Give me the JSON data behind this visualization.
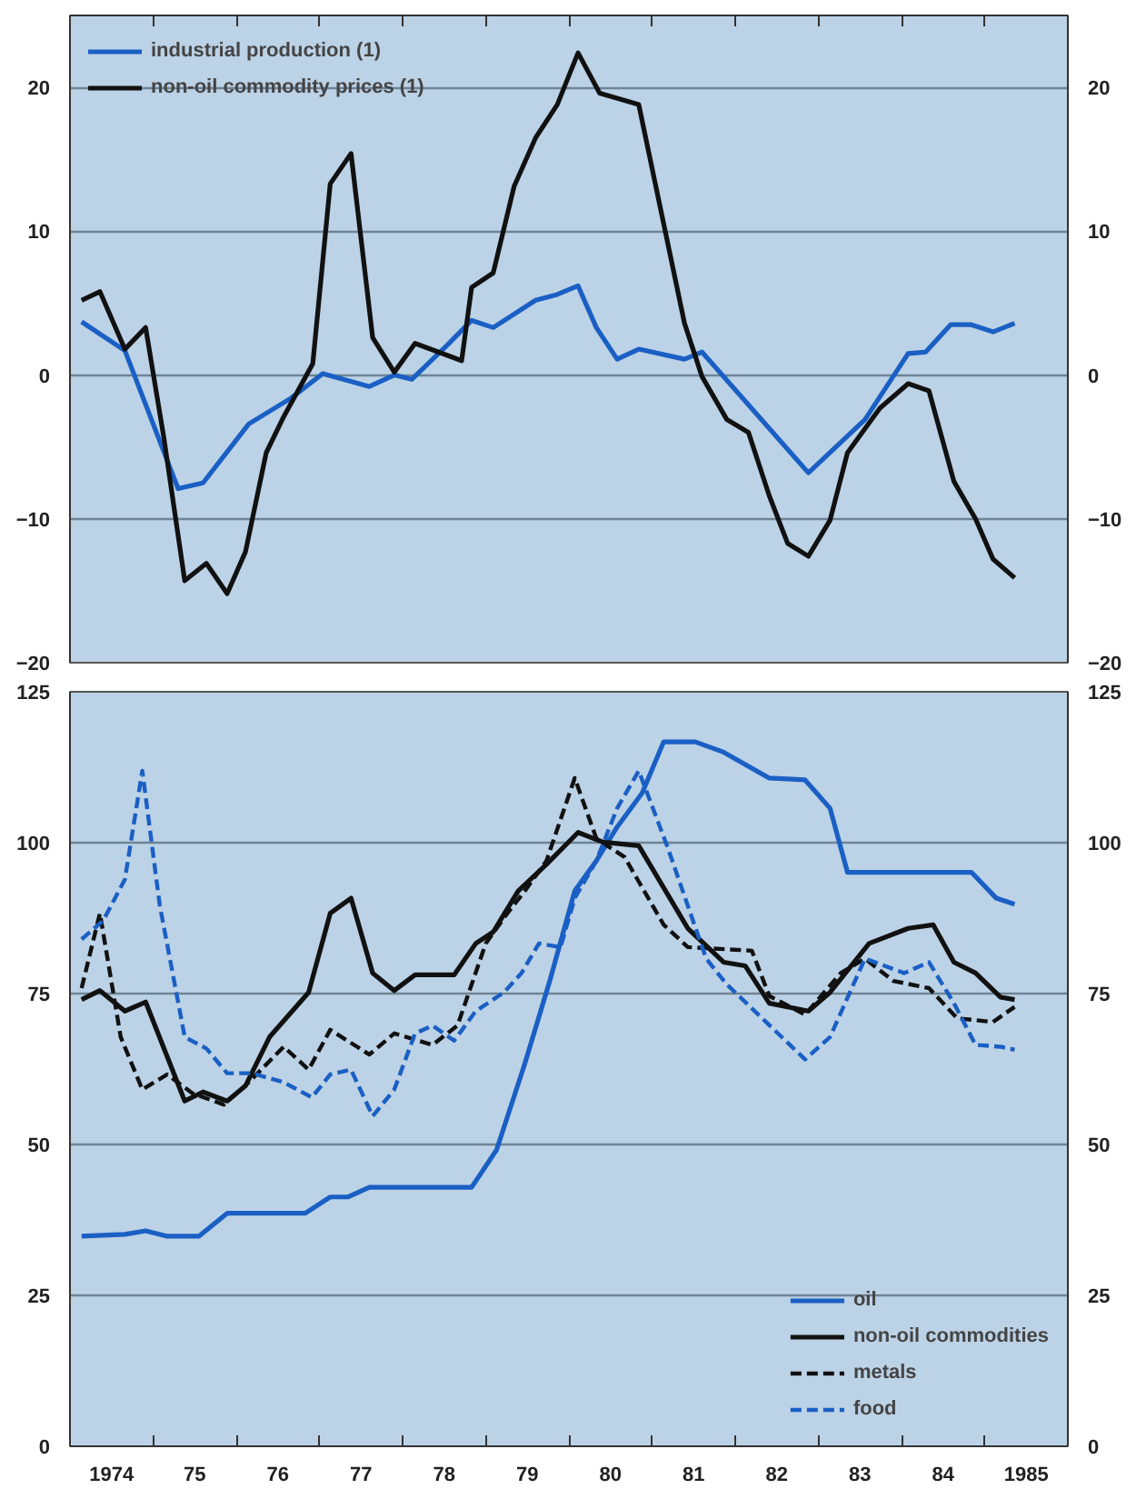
{
  "chart_data": [
    {
      "type": "line",
      "xlim": [
        1973.5,
        1985.5
      ],
      "ylim": [
        -20,
        25
      ],
      "yticks": [
        -20,
        -10,
        0,
        10,
        20
      ],
      "y2lim": [
        -20,
        25
      ],
      "y2ticks": [
        -20,
        -10,
        0,
        10,
        20
      ],
      "xticks": [
        {
          "value": 1974.5,
          "label": null
        },
        {
          "value": 1975.5,
          "label": null
        },
        {
          "value": 1976.5,
          "label": null
        },
        {
          "value": 1977.5,
          "label": null
        },
        {
          "value": 1978.5,
          "label": null
        },
        {
          "value": 1979.5,
          "label": null
        },
        {
          "value": 1980.5,
          "label": null
        },
        {
          "value": 1981.5,
          "label": null
        },
        {
          "value": 1982.5,
          "label": null
        },
        {
          "value": 1983.5,
          "label": null
        },
        {
          "value": 1984.5,
          "label": null
        }
      ],
      "tick_labels": "y",
      "grid": "y",
      "legend": "top left",
      "line_style": "solid",
      "series": [
        {
          "name": "industrial production (1)",
          "color": "#1a5fc4",
          "x": [
            1973.64,
            1974.16,
            1974.8,
            1975.1,
            1975.65,
            1976.16,
            1976.54,
            1977.1,
            1977.4,
            1977.61,
            1978.04,
            1978.33,
            1978.59,
            1979.1,
            1979.36,
            1979.61,
            1979.83,
            1980.08,
            1980.34,
            1980.89,
            1981.1,
            1982.38,
            1983.06,
            1983.58,
            1983.79,
            1984.09,
            1984.34,
            1984.6,
            1984.86
          ],
          "values": [
            3.7,
            1.7,
            -7.9,
            -7.5,
            -3.4,
            -1.6,
            0.1,
            -0.8,
            0,
            -0.3,
            2.1,
            3.8,
            3.3,
            5.2,
            5.6,
            6.2,
            3.3,
            1.1,
            1.8,
            1.1,
            1.6,
            -6.8,
            -3.1,
            1.5,
            1.6,
            3.5,
            3.5,
            3.0,
            3.6
          ]
        },
        {
          "name": "non-oil commodity prices (1)",
          "color": "#111111",
          "x": [
            1973.64,
            1973.86,
            1974.16,
            1974.41,
            1974.63,
            1974.88,
            1975.14,
            1975.39,
            1975.61,
            1975.86,
            1976.07,
            1976.42,
            1976.63,
            1976.88,
            1977.14,
            1977.4,
            1977.65,
            1978.21,
            1978.33,
            1978.59,
            1978.84,
            1979.1,
            1979.36,
            1979.61,
            1979.87,
            1980.34,
            1980.89,
            1981.1,
            1981.4,
            1981.66,
            1981.91,
            1982.13,
            1982.38,
            1982.64,
            1982.85,
            1983.24,
            1983.58,
            1983.83,
            1984.13,
            1984.39,
            1984.6,
            1984.86
          ],
          "values": [
            5.2,
            5.8,
            1.8,
            3.3,
            -4.4,
            -14.3,
            -13.1,
            -15.2,
            -12.3,
            -5.4,
            -2.9,
            0.8,
            13.3,
            15.4,
            2.6,
            0.2,
            2.2,
            1.0,
            6.1,
            7.1,
            13.1,
            16.5,
            18.8,
            22.4,
            19.6,
            18.8,
            3.6,
            -0.1,
            -3.1,
            -4.0,
            -8.4,
            -11.7,
            -12.6,
            -10.1,
            -5.4,
            -2.3,
            -0.6,
            -1.1,
            -7.4,
            -10.0,
            -12.8,
            -14.1
          ]
        }
      ]
    },
    {
      "type": "line",
      "xlim": [
        1973.5,
        1985.5
      ],
      "ylim": [
        0,
        125
      ],
      "yticks": [
        0,
        25,
        50,
        75,
        100,
        125
      ],
      "y2lim": [
        0,
        125
      ],
      "y2ticks": [
        0,
        25,
        50,
        75,
        100,
        125
      ],
      "xticks": [
        {
          "value": 1974,
          "label": "1974"
        },
        {
          "value": 1975,
          "label": "75"
        },
        {
          "value": 1976,
          "label": "76"
        },
        {
          "value": 1977,
          "label": "77"
        },
        {
          "value": 1978,
          "label": "78"
        },
        {
          "value": 1979,
          "label": "79"
        },
        {
          "value": 1980,
          "label": "80"
        },
        {
          "value": 1981,
          "label": "81"
        },
        {
          "value": 1982,
          "label": "82"
        },
        {
          "value": 1983,
          "label": "83"
        },
        {
          "value": 1984,
          "label": "84"
        },
        {
          "value": 1985,
          "label": "1985"
        },
        {
          "value": 1974.5,
          "label": null
        },
        {
          "value": 1975.5,
          "label": null
        },
        {
          "value": 1976.5,
          "label": null
        },
        {
          "value": 1977.5,
          "label": null
        },
        {
          "value": 1978.5,
          "label": null
        },
        {
          "value": 1979.5,
          "label": null
        },
        {
          "value": 1980.5,
          "label": null
        },
        {
          "value": 1981.5,
          "label": null
        },
        {
          "value": 1982.5,
          "label": null
        },
        {
          "value": 1983.5,
          "label": null
        },
        {
          "value": 1984.5,
          "label": null
        }
      ],
      "grid": "y",
      "legend": "bottom right",
      "series": [
        {
          "name": "oil",
          "color": "#1a5fc4",
          "line_style": "solid",
          "x": [
            1973.64,
            1974.16,
            1974.41,
            1974.67,
            1975.05,
            1975.39,
            1976.33,
            1976.63,
            1976.84,
            1977.1,
            1978.33,
            1978.63,
            1978.97,
            1979.27,
            1979.57,
            1979.83,
            1980.08,
            1980.38,
            1980.64,
            1981.02,
            1981.36,
            1981.91,
            1982.34,
            1982.64,
            1982.85,
            1984.34,
            1984.64,
            1984.86
          ],
          "values": [
            34.8,
            35.1,
            35.7,
            34.8,
            34.8,
            38.6,
            38.6,
            41.3,
            41.3,
            42.9,
            42.9,
            49.1,
            63.4,
            77.1,
            92.0,
            97.0,
            102.6,
            108.2,
            116.7,
            116.7,
            115.0,
            110.7,
            110.4,
            105.7,
            95.1,
            95.1,
            90.8,
            89.8
          ]
        },
        {
          "name": "non-oil commodities",
          "color": "#111111",
          "line_style": "solid",
          "x": [
            1973.64,
            1973.86,
            1974.16,
            1974.41,
            1974.88,
            1975.1,
            1975.39,
            1975.61,
            1975.9,
            1976.37,
            1976.63,
            1976.88,
            1977.14,
            1977.4,
            1977.65,
            1978.12,
            1978.38,
            1978.59,
            1978.89,
            1979.23,
            1979.61,
            1979.91,
            1980.34,
            1980.93,
            1981.36,
            1981.62,
            1981.91,
            1982.38,
            1982.64,
            1983.11,
            1983.58,
            1983.88,
            1984.13,
            1984.39,
            1984.69,
            1984.86
          ],
          "values": [
            74.0,
            75.5,
            72.1,
            73.6,
            57.2,
            58.7,
            57.2,
            59.7,
            67.8,
            75.2,
            88.3,
            90.8,
            78.4,
            75.5,
            78.1,
            78.1,
            83.3,
            85.2,
            92.0,
            96.4,
            101.7,
            100.1,
            99.5,
            85.8,
            80.2,
            79.6,
            73.4,
            72.1,
            75.2,
            83.3,
            85.8,
            86.4,
            80.2,
            78.4,
            74.4,
            74.0
          ]
        },
        {
          "name": "metals",
          "color": "#111111",
          "line_style": "dashed",
          "x": [
            1973.64,
            1973.86,
            1974.11,
            1974.37,
            1974.67,
            1974.97,
            1975.35,
            1975.65,
            1976.07,
            1976.37,
            1976.63,
            1977.1,
            1977.4,
            1977.86,
            1978.16,
            1978.5,
            1978.76,
            1978.97,
            1979.23,
            1979.57,
            1979.83,
            1980.17,
            1980.64,
            1980.93,
            1981.7,
            1981.91,
            1982.34,
            1982.77,
            1983.06,
            1983.4,
            1983.83,
            1984.17,
            1984.6,
            1984.86
          ],
          "values": [
            75.9,
            88.3,
            67.8,
            59.1,
            61.6,
            58.5,
            56.6,
            60.3,
            66.2,
            62.4,
            69.0,
            64.9,
            68.4,
            66.5,
            69.7,
            83.3,
            88.3,
            92.0,
            97.0,
            110.7,
            100.7,
            97.6,
            86.4,
            82.7,
            82.1,
            74.6,
            71.5,
            78.4,
            80.8,
            77.1,
            75.9,
            70.9,
            70.3,
            72.8
          ]
        },
        {
          "name": "food",
          "color": "#1a5fc4",
          "line_style": "dashed",
          "x": [
            1973.64,
            1973.9,
            1974.16,
            1974.37,
            1974.58,
            1974.88,
            1975.14,
            1975.39,
            1975.69,
            1976.07,
            1976.41,
            1976.63,
            1976.88,
            1977.14,
            1977.4,
            1977.65,
            1977.86,
            1978.12,
            1978.38,
            1978.72,
            1978.93,
            1979.14,
            1979.4,
            1979.57,
            1979.83,
            1980.08,
            1980.34,
            1980.68,
            1981.15,
            1981.4,
            1981.87,
            1982.34,
            1982.64,
            1983.06,
            1983.53,
            1983.83,
            1984.13,
            1984.39,
            1984.69,
            1984.86
          ],
          "values": [
            84.0,
            87.1,
            93.9,
            111.9,
            89.6,
            67.8,
            65.9,
            61.8,
            61.8,
            60.3,
            57.8,
            61.6,
            62.4,
            54.7,
            59.1,
            68.4,
            69.7,
            67.2,
            72.1,
            75.2,
            78.4,
            83.3,
            82.7,
            90.8,
            97.0,
            105.7,
            111.9,
            99.5,
            80.8,
            76.5,
            70.3,
            64.1,
            67.8,
            80.8,
            78.4,
            80.2,
            73.4,
            66.5,
            66.2,
            65.7
          ]
        }
      ]
    }
  ]
}
